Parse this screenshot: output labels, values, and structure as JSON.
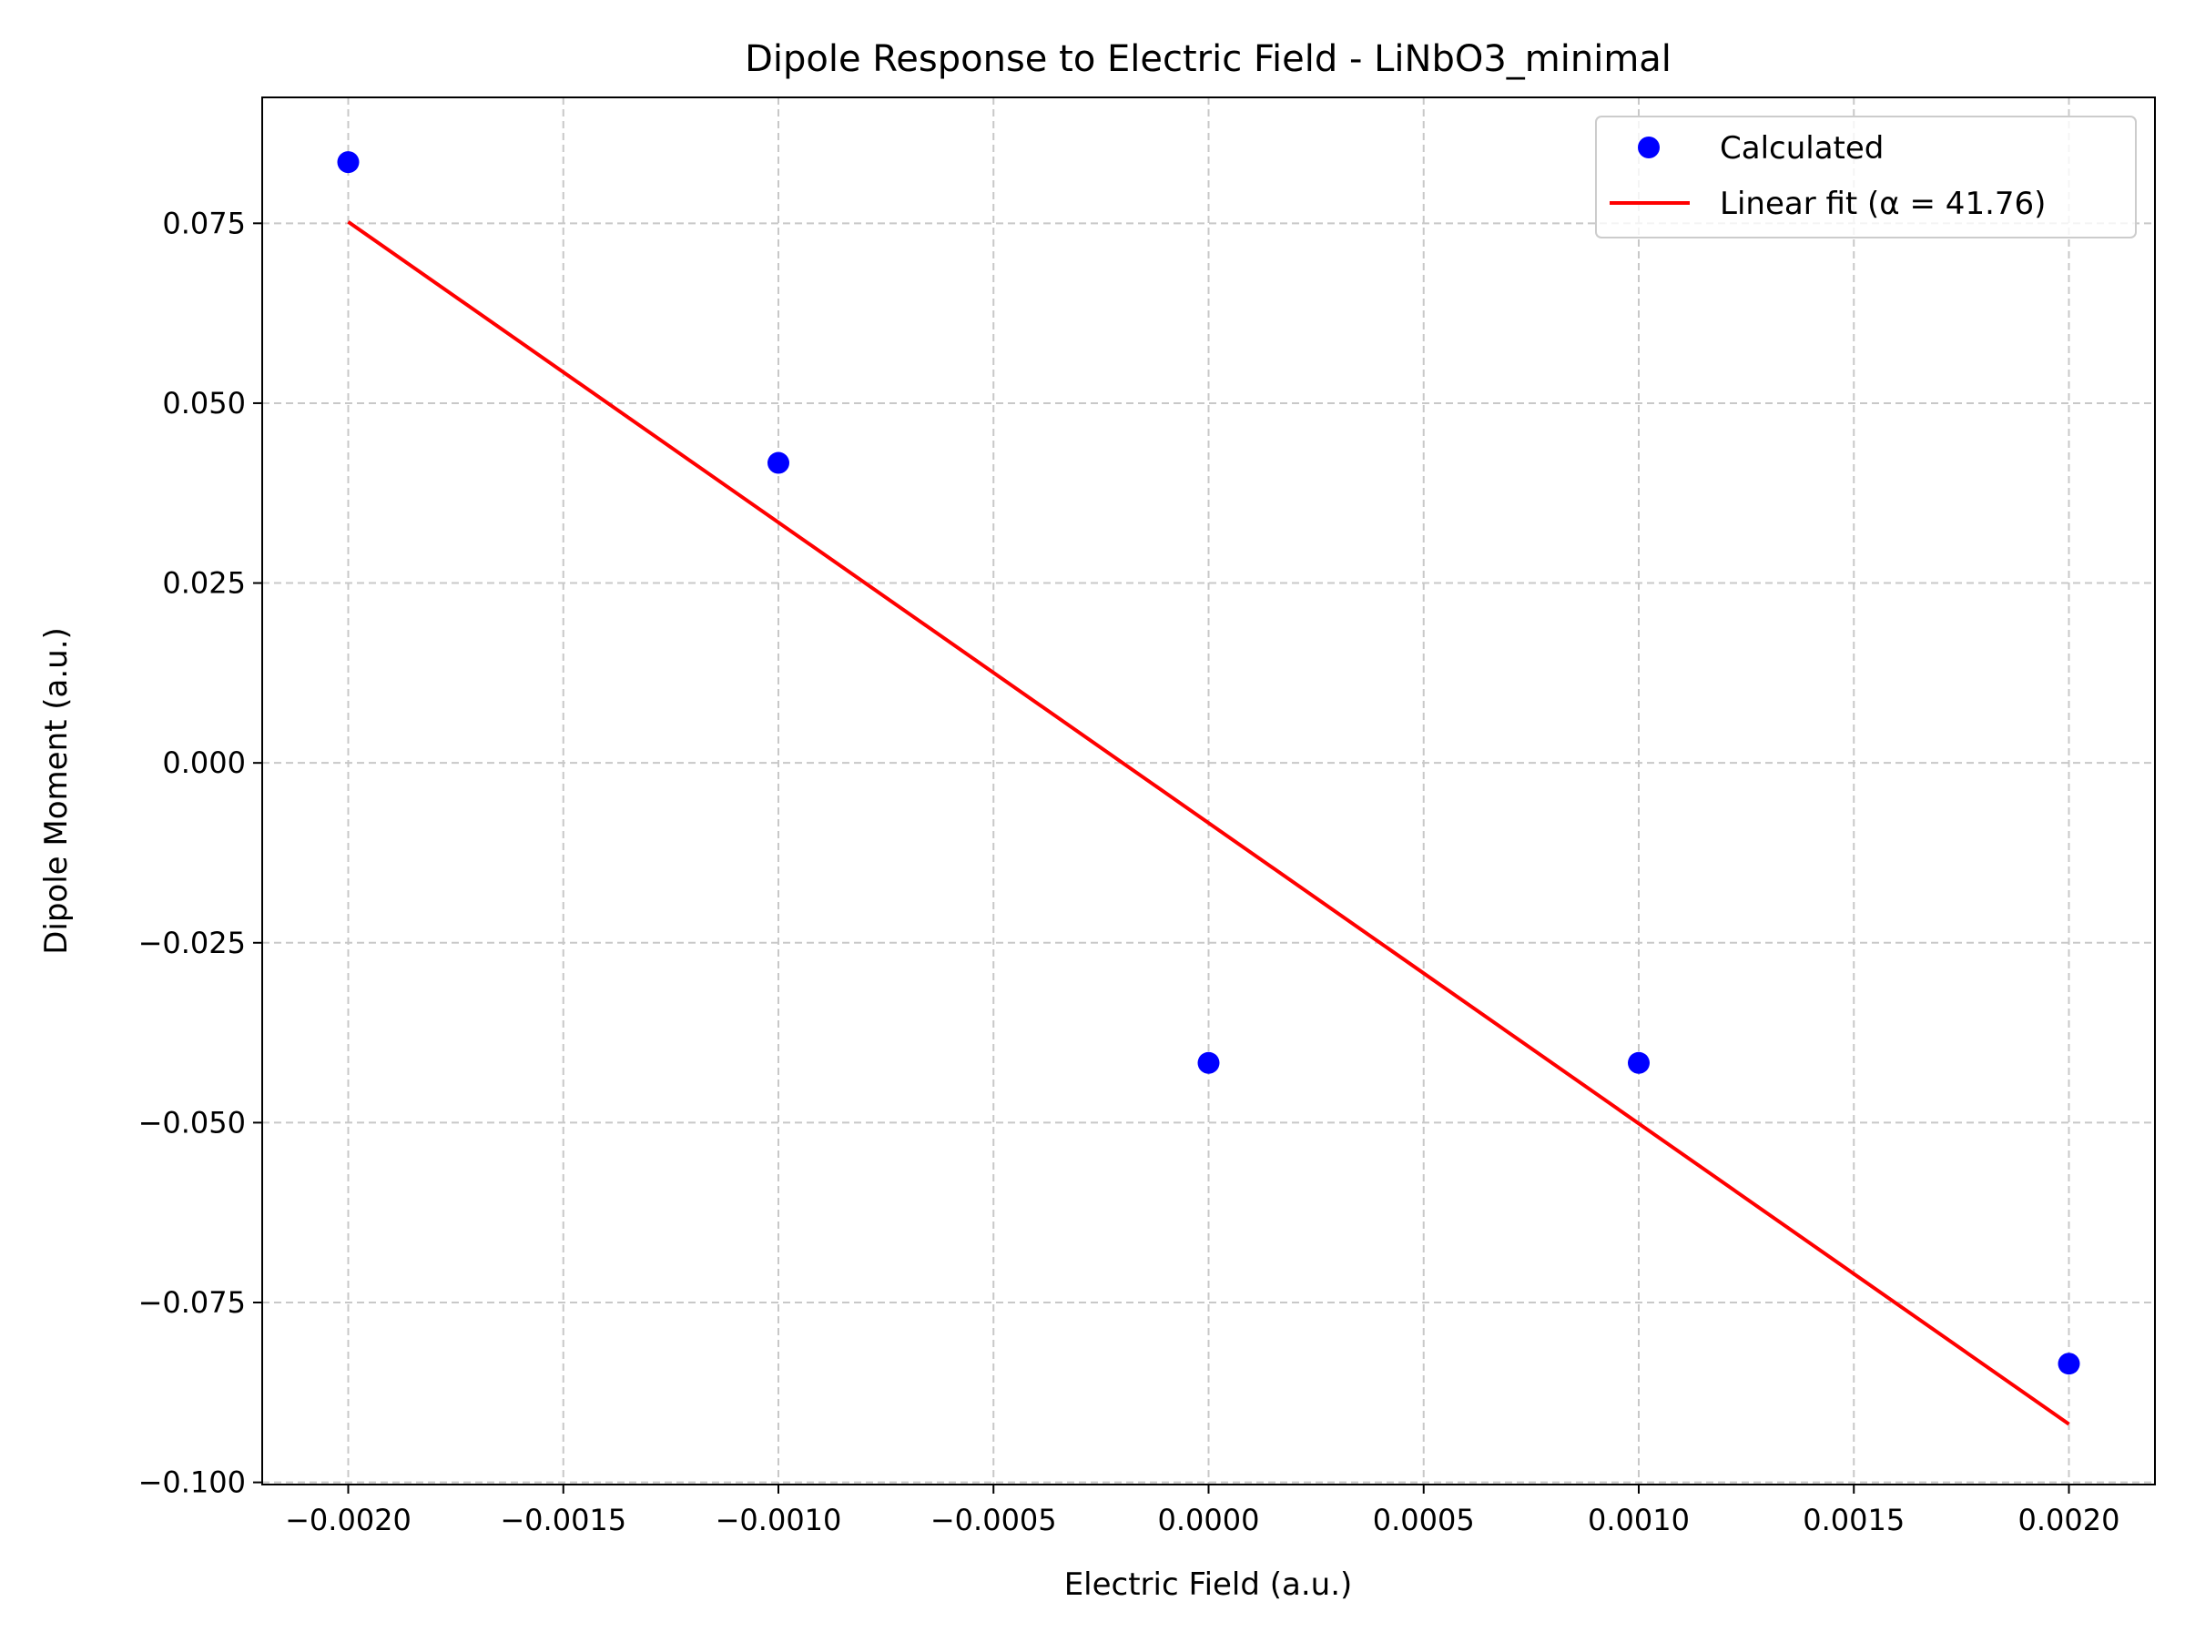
{
  "chart_data": {
    "type": "scatter",
    "title": "Dipole Response to Electric Field - LiNbO3_minimal",
    "xlabel": "Electric Field (a.u.)",
    "ylabel": "Dipole Moment (a.u.)",
    "xlim": [
      -0.0022,
      0.0022
    ],
    "ylim": [
      -0.1003,
      0.0925
    ],
    "grid": true,
    "legend_position": "top-right",
    "x_ticks": [
      -0.002,
      -0.0015,
      -0.001,
      -0.0005,
      0.0,
      0.0005,
      0.001,
      0.0015,
      0.002
    ],
    "x_tick_labels": [
      "−0.0020",
      "−0.0015",
      "−0.0010",
      "−0.0005",
      "0.0000",
      "0.0005",
      "0.0010",
      "0.0015",
      "0.0020"
    ],
    "y_ticks": [
      0.075,
      0.05,
      0.025,
      0.0,
      -0.025,
      -0.05,
      -0.075,
      -0.1
    ],
    "y_tick_labels": [
      "0.075",
      "0.050",
      "0.025",
      "0.000",
      "−0.025",
      "−0.050",
      "−0.075",
      "−0.100"
    ],
    "series": [
      {
        "name": "Calculated",
        "kind": "scatter",
        "color": "#0000ff",
        "x": [
          -0.002,
          -0.001,
          0.0,
          0.001,
          0.002
        ],
        "y": [
          0.0835,
          0.0417,
          -0.0417,
          -0.0417,
          -0.0835
        ]
      },
      {
        "name": "Linear fit (α = 41.76)",
        "kind": "line",
        "color": "#ff0000",
        "x": [
          -0.002,
          0.002
        ],
        "y": [
          0.0752,
          -0.0919
        ]
      }
    ]
  }
}
